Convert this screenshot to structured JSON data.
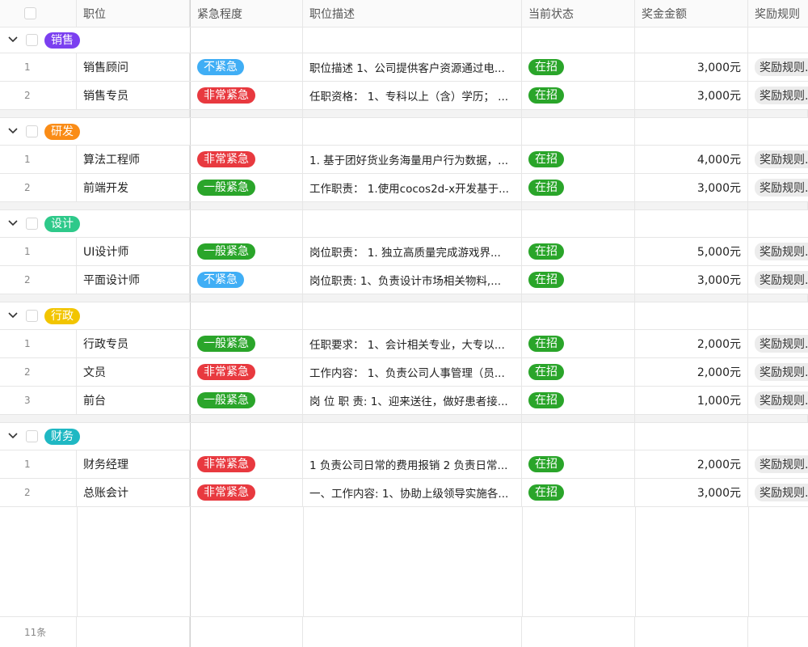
{
  "columns": [
    "职位",
    "紧急程度",
    "职位描述",
    "当前状态",
    "奖金金额",
    "奖励规则"
  ],
  "colors": {
    "不紧急": "#40aef5",
    "非常紧急": "#e8393f",
    "一般紧急": "#2aa52a",
    "在招": "#2aa52a"
  },
  "groups": [
    {
      "name": "销售",
      "color": "#7b3ff0",
      "rows": [
        {
          "index": "1",
          "title": "销售顾问",
          "urgency": "不紧急",
          "desc": "职位描述 1、公司提供客户资源通过电...",
          "status": "在招",
          "amount": "3,000元",
          "reward": "奖励规则..."
        },
        {
          "index": "2",
          "title": "销售专员",
          "urgency": "非常紧急",
          "desc": "任职资格： 1、专科以上（含）学历； ...",
          "status": "在招",
          "amount": "3,000元",
          "reward": "奖励规则..."
        }
      ]
    },
    {
      "name": "研发",
      "color": "#fa8c16",
      "rows": [
        {
          "index": "1",
          "title": "算法工程师",
          "urgency": "非常紧急",
          "desc": "1. 基于团好货业务海量用户行为数据，...",
          "status": "在招",
          "amount": "4,000元",
          "reward": "奖励规则..."
        },
        {
          "index": "2",
          "title": "前端开发",
          "urgency": "一般紧急",
          "desc": "工作职责： 1.使用cocos2d-x开发基于...",
          "status": "在招",
          "amount": "3,000元",
          "reward": "奖励规则..."
        }
      ]
    },
    {
      "name": "设计",
      "color": "#2ec98a",
      "rows": [
        {
          "index": "1",
          "title": "UI设计师",
          "urgency": "一般紧急",
          "desc": "岗位职责： 1. 独立高质量完成游戏界...",
          "status": "在招",
          "amount": "5,000元",
          "reward": "奖励规则..."
        },
        {
          "index": "2",
          "title": "平面设计师",
          "urgency": "不紧急",
          "desc": "岗位职责: 1、负责设计市场相关物料,...",
          "status": "在招",
          "amount": "3,000元",
          "reward": "奖励规则..."
        }
      ]
    },
    {
      "name": "行政",
      "color": "#f2c500",
      "rows": [
        {
          "index": "1",
          "title": "行政专员",
          "urgency": "一般紧急",
          "desc": "任职要求： 1、会计相关专业，大专以...",
          "status": "在招",
          "amount": "2,000元",
          "reward": "奖励规则..."
        },
        {
          "index": "2",
          "title": "文员",
          "urgency": "非常紧急",
          "desc": "工作内容： 1、负责公司人事管理（员...",
          "status": "在招",
          "amount": "2,000元",
          "reward": "奖励规则..."
        },
        {
          "index": "3",
          "title": "前台",
          "urgency": "一般紧急",
          "desc": "岗 位 职 责: 1、迎来送往，做好患者接...",
          "status": "在招",
          "amount": "1,000元",
          "reward": "奖励规则..."
        }
      ]
    },
    {
      "name": "财务",
      "color": "#1fb8c3",
      "rows": [
        {
          "index": "1",
          "title": "财务经理",
          "urgency": "非常紧急",
          "desc": "1 负责公司日常的费用报销 2 负责日常...",
          "status": "在招",
          "amount": "2,000元",
          "reward": "奖励规则..."
        },
        {
          "index": "2",
          "title": "总账会计",
          "urgency": "非常紧急",
          "desc": "一、工作内容: 1、协助上级领导实施各...",
          "status": "在招",
          "amount": "3,000元",
          "reward": "奖励规则..."
        }
      ]
    }
  ],
  "footer": {
    "count": "11条"
  }
}
